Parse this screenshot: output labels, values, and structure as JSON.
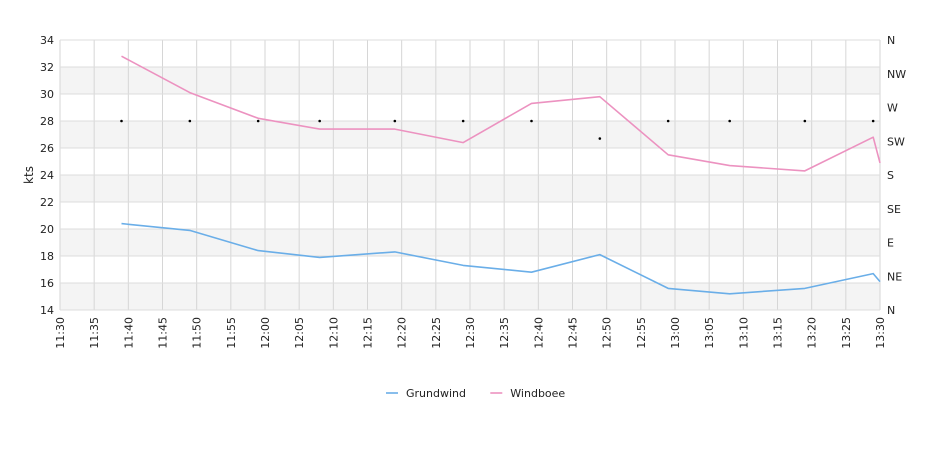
{
  "chart_data": {
    "type": "line",
    "ylabel": "kts",
    "ylim": [
      14,
      34
    ],
    "yticks": [
      14,
      16,
      18,
      20,
      22,
      24,
      26,
      28,
      30,
      32,
      34
    ],
    "xlim": [
      "11:30",
      "13:30"
    ],
    "xticks": [
      "11:30",
      "11:35",
      "11:40",
      "11:45",
      "11:50",
      "11:55",
      "12:00",
      "12:05",
      "12:10",
      "12:15",
      "12:20",
      "12:25",
      "12:30",
      "12:35",
      "12:40",
      "12:45",
      "12:50",
      "12:55",
      "13:00",
      "13:05",
      "13:10",
      "13:15",
      "13:20",
      "13:25",
      "13:30"
    ],
    "y2ticks": [
      "N",
      "NE",
      "E",
      "SE",
      "S",
      "SW",
      "W",
      "NW",
      "N"
    ],
    "grid": true,
    "legend_position": "bottom-center",
    "series": [
      {
        "name": "Grundwind",
        "color": "#6aaee8",
        "x": [
          "11:39",
          "11:49",
          "11:59",
          "12:08",
          "12:19",
          "12:29",
          "12:39",
          "12:49",
          "12:59",
          "13:08",
          "13:19",
          "13:29",
          "13:30"
        ],
        "values": [
          20.4,
          19.9,
          18.4,
          17.9,
          18.3,
          17.3,
          16.8,
          18.1,
          15.6,
          15.2,
          15.6,
          16.7,
          16.1
        ]
      },
      {
        "name": "Windboee",
        "color": "#ec92c0",
        "x": [
          "11:39",
          "11:49",
          "11:59",
          "12:08",
          "12:19",
          "12:29",
          "12:39",
          "12:49",
          "12:59",
          "13:08",
          "13:19",
          "13:29",
          "13:30"
        ],
        "values": [
          32.8,
          30.1,
          28.2,
          27.4,
          27.4,
          26.4,
          29.3,
          29.8,
          25.5,
          24.7,
          24.3,
          26.8,
          24.9
        ]
      }
    ],
    "direction_series": {
      "color": "#000000",
      "x": [
        "11:39",
        "11:49",
        "11:59",
        "12:08",
        "12:19",
        "12:29",
        "12:39",
        "12:49",
        "12:59",
        "13:08",
        "13:19",
        "13:29"
      ],
      "values": [
        28.0,
        28.0,
        28.0,
        28.0,
        28.0,
        28.0,
        28.0,
        26.7,
        28.0,
        28.0,
        28.0,
        28.0
      ]
    }
  }
}
